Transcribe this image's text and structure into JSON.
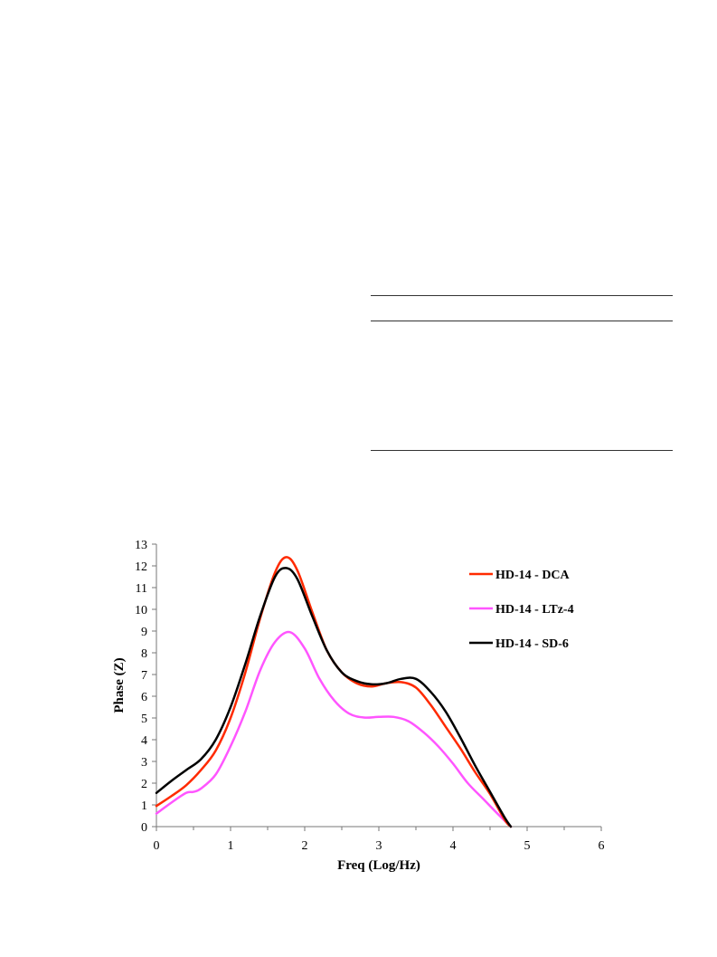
{
  "chart_data": {
    "type": "line",
    "title": "",
    "xlabel": "Freq (Log/Hz)",
    "ylabel": "Phase (Z)",
    "xlim": [
      0,
      6
    ],
    "ylim": [
      0,
      13
    ],
    "x_ticks": [
      "0",
      "1",
      "2",
      "3",
      "4",
      "5",
      "6"
    ],
    "y_ticks": [
      "0",
      "1",
      "2",
      "3",
      "4",
      "5",
      "6",
      "7",
      "8",
      "9",
      "10",
      "11",
      "12",
      "13"
    ],
    "grid": false,
    "legend_position": "top-right",
    "series": [
      {
        "name": "HD-14 - DCA",
        "color": "#ff2a00",
        "x": [
          0,
          0.2,
          0.4,
          0.6,
          0.8,
          1.0,
          1.2,
          1.4,
          1.6,
          1.75,
          1.9,
          2.1,
          2.3,
          2.5,
          2.7,
          2.9,
          3.1,
          3.3,
          3.5,
          3.7,
          3.9,
          4.1,
          4.3,
          4.5,
          4.7,
          4.78
        ],
        "y": [
          0.95,
          1.4,
          1.9,
          2.6,
          3.5,
          5.0,
          7.1,
          9.6,
          11.7,
          12.4,
          11.8,
          9.9,
          8.1,
          7.1,
          6.6,
          6.45,
          6.6,
          6.65,
          6.4,
          5.6,
          4.6,
          3.6,
          2.5,
          1.5,
          0.3,
          0
        ]
      },
      {
        "name": "HD-14 - LTz-4",
        "color": "#ff55ff",
        "x": [
          0,
          0.2,
          0.4,
          0.5,
          0.6,
          0.8,
          1.0,
          1.2,
          1.4,
          1.6,
          1.8,
          2.0,
          2.2,
          2.4,
          2.6,
          2.8,
          3.0,
          3.2,
          3.4,
          3.6,
          3.8,
          4.0,
          4.2,
          4.4,
          4.6,
          4.78
        ],
        "y": [
          0.6,
          1.1,
          1.55,
          1.6,
          1.75,
          2.4,
          3.7,
          5.3,
          7.2,
          8.5,
          8.95,
          8.2,
          6.8,
          5.8,
          5.2,
          5.02,
          5.05,
          5.05,
          4.85,
          4.35,
          3.7,
          2.9,
          2.0,
          1.3,
          0.6,
          0
        ]
      },
      {
        "name": "HD-14 - SD-6",
        "color": "#000000",
        "x": [
          0,
          0.2,
          0.4,
          0.6,
          0.8,
          1.0,
          1.2,
          1.4,
          1.6,
          1.75,
          1.9,
          2.1,
          2.3,
          2.5,
          2.7,
          2.9,
          3.1,
          3.3,
          3.5,
          3.7,
          3.9,
          4.1,
          4.3,
          4.5,
          4.7,
          4.78
        ],
        "y": [
          1.55,
          2.1,
          2.6,
          3.1,
          4.0,
          5.5,
          7.5,
          9.7,
          11.5,
          11.9,
          11.4,
          9.7,
          8.1,
          7.1,
          6.7,
          6.55,
          6.6,
          6.8,
          6.8,
          6.2,
          5.3,
          4.1,
          2.8,
          1.6,
          0.4,
          0
        ]
      }
    ]
  }
}
